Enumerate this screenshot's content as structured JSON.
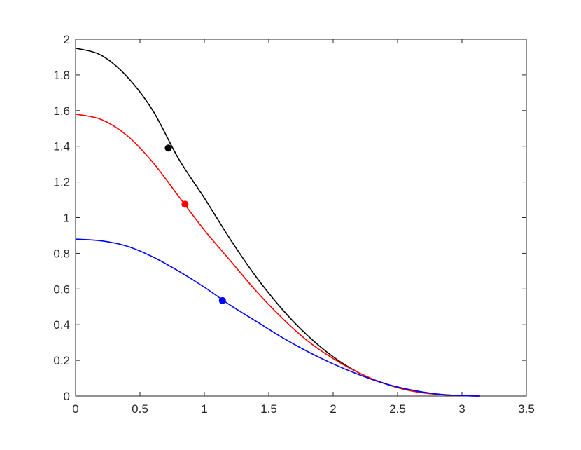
{
  "chart_data": {
    "type": "line",
    "title": "",
    "xlabel": "",
    "ylabel": "",
    "xlim": [
      0,
      3.5
    ],
    "ylim": [
      0,
      2
    ],
    "xticks": [
      0,
      0.5,
      1,
      1.5,
      2,
      2.5,
      3,
      3.5
    ],
    "yticks": [
      0,
      0.2,
      0.4,
      0.6,
      0.8,
      1,
      1.2,
      1.4,
      1.6,
      1.8,
      2
    ],
    "xtick_labels": [
      "0",
      "0.5",
      "1",
      "1.5",
      "2",
      "2.5",
      "3",
      "3.5"
    ],
    "ytick_labels": [
      "0",
      "0.2",
      "0.4",
      "0.6",
      "0.8",
      "1",
      "1.2",
      "1.4",
      "1.6",
      "1.8",
      "2"
    ],
    "grid": false,
    "legend": "none",
    "series": [
      {
        "color": "#000000",
        "x": [
          0,
          0.2,
          0.4,
          0.6,
          0.8,
          1.0,
          1.2,
          1.4,
          1.6,
          1.8,
          2.0,
          2.2,
          2.4,
          2.6,
          2.8,
          3.0,
          3.14
        ],
        "y": [
          1.95,
          1.91,
          1.79,
          1.6,
          1.33,
          1.11,
          0.88,
          0.67,
          0.49,
          0.34,
          0.22,
          0.13,
          0.07,
          0.03,
          0.01,
          0.002,
          0
        ],
        "marker": {
          "x": 0.72,
          "y": 1.39
        }
      },
      {
        "color": "#ff0000",
        "x": [
          0,
          0.2,
          0.4,
          0.6,
          0.8,
          1.0,
          1.2,
          1.4,
          1.6,
          1.8,
          2.0,
          2.2,
          2.4,
          2.6,
          2.8,
          3.0,
          3.14
        ],
        "y": [
          1.58,
          1.55,
          1.46,
          1.31,
          1.12,
          0.93,
          0.76,
          0.59,
          0.44,
          0.31,
          0.21,
          0.13,
          0.07,
          0.03,
          0.01,
          0.002,
          0
        ],
        "marker": {
          "x": 0.85,
          "y": 1.075
        }
      },
      {
        "color": "#0000ff",
        "x": [
          0,
          0.2,
          0.4,
          0.6,
          0.8,
          1.0,
          1.2,
          1.4,
          1.6,
          1.8,
          2.0,
          2.2,
          2.4,
          2.6,
          2.8,
          3.0,
          3.14
        ],
        "y": [
          0.88,
          0.87,
          0.84,
          0.78,
          0.7,
          0.61,
          0.51,
          0.42,
          0.33,
          0.25,
          0.18,
          0.12,
          0.07,
          0.035,
          0.012,
          0.002,
          0
        ],
        "marker": {
          "x": 1.14,
          "y": 0.535
        }
      }
    ]
  }
}
